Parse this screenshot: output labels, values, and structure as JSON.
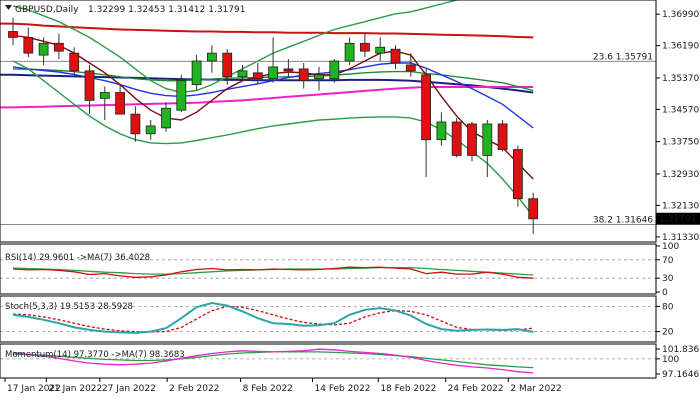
{
  "chart_data": {
    "type": "candlestick",
    "header": {
      "symbol": "GBPUSD,Daily",
      "ohlc": "1.32299 1.32453 1.31412 1.31791"
    },
    "y_axis": {
      "ticks": [
        "1.36990",
        "1.36190",
        "1.35370",
        "1.34570",
        "1.33750",
        "1.32930",
        "1.32130",
        "1.31330"
      ],
      "ylim": [
        1.312,
        1.373
      ],
      "current_price": "1.31791"
    },
    "x_axis": {
      "labels": [
        "17 Jan 2022",
        "21 Jan 2022",
        "27 Jan 2022",
        "2 Feb 2022",
        "8 Feb 2022",
        "14 Feb 2022",
        "18 Feb 2022",
        "24 Feb 2022",
        "2 Mar 2022"
      ]
    },
    "fib_levels": [
      {
        "label": "23.6 1.35791",
        "price": 1.35791
      },
      {
        "label": "38.2 1.31646",
        "price": 1.31646
      }
    ],
    "candles": [
      {
        "o": 1.3655,
        "h": 1.369,
        "l": 1.362,
        "c": 1.364
      },
      {
        "o": 1.364,
        "h": 1.3665,
        "l": 1.359,
        "c": 1.36
      },
      {
        "o": 1.3595,
        "h": 1.364,
        "l": 1.357,
        "c": 1.3625
      },
      {
        "o": 1.3625,
        "h": 1.365,
        "l": 1.3585,
        "c": 1.3605
      },
      {
        "o": 1.36,
        "h": 1.3615,
        "l": 1.354,
        "c": 1.3555
      },
      {
        "o": 1.3555,
        "h": 1.357,
        "l": 1.3445,
        "c": 1.348
      },
      {
        "o": 1.3485,
        "h": 1.3515,
        "l": 1.343,
        "c": 1.35
      },
      {
        "o": 1.35,
        "h": 1.352,
        "l": 1.3445,
        "c": 1.3445
      },
      {
        "o": 1.3445,
        "h": 1.3465,
        "l": 1.3375,
        "c": 1.3395
      },
      {
        "o": 1.3395,
        "h": 1.343,
        "l": 1.338,
        "c": 1.3415
      },
      {
        "o": 1.341,
        "h": 1.3475,
        "l": 1.34,
        "c": 1.346
      },
      {
        "o": 1.3455,
        "h": 1.3545,
        "l": 1.345,
        "c": 1.353
      },
      {
        "o": 1.352,
        "h": 1.3595,
        "l": 1.3505,
        "c": 1.358
      },
      {
        "o": 1.358,
        "h": 1.362,
        "l": 1.355,
        "c": 1.36
      },
      {
        "o": 1.36,
        "h": 1.361,
        "l": 1.352,
        "c": 1.354
      },
      {
        "o": 1.354,
        "h": 1.357,
        "l": 1.353,
        "c": 1.3555
      },
      {
        "o": 1.355,
        "h": 1.3575,
        "l": 1.352,
        "c": 1.3535
      },
      {
        "o": 1.3535,
        "h": 1.364,
        "l": 1.3525,
        "c": 1.3565
      },
      {
        "o": 1.356,
        "h": 1.3585,
        "l": 1.354,
        "c": 1.3555
      },
      {
        "o": 1.356,
        "h": 1.3575,
        "l": 1.351,
        "c": 1.353
      },
      {
        "o": 1.3535,
        "h": 1.3565,
        "l": 1.3505,
        "c": 1.3545
      },
      {
        "o": 1.3535,
        "h": 1.3585,
        "l": 1.3525,
        "c": 1.358
      },
      {
        "o": 1.358,
        "h": 1.364,
        "l": 1.357,
        "c": 1.3625
      },
      {
        "o": 1.3625,
        "h": 1.365,
        "l": 1.359,
        "c": 1.3605
      },
      {
        "o": 1.36,
        "h": 1.364,
        "l": 1.358,
        "c": 1.3615
      },
      {
        "o": 1.361,
        "h": 1.362,
        "l": 1.356,
        "c": 1.3575
      },
      {
        "o": 1.357,
        "h": 1.36,
        "l": 1.354,
        "c": 1.3555
      },
      {
        "o": 1.3545,
        "h": 1.356,
        "l": 1.3285,
        "c": 1.338
      },
      {
        "o": 1.338,
        "h": 1.345,
        "l": 1.3365,
        "c": 1.3425
      },
      {
        "o": 1.3425,
        "h": 1.3435,
        "l": 1.3335,
        "c": 1.334
      },
      {
        "o": 1.342,
        "h": 1.3425,
        "l": 1.3325,
        "c": 1.334
      },
      {
        "o": 1.334,
        "h": 1.343,
        "l": 1.3285,
        "c": 1.342
      },
      {
        "o": 1.342,
        "h": 1.343,
        "l": 1.335,
        "c": 1.3355
      },
      {
        "o": 1.3355,
        "h": 1.3365,
        "l": 1.321,
        "c": 1.323
      },
      {
        "o": 1.323,
        "h": 1.3245,
        "l": 1.3141,
        "c": 1.3179
      }
    ],
    "ma_blue_label": "",
    "overlays": [
      {
        "color": "#cc1111",
        "values": [
          1.3675,
          1.3673,
          1.367,
          1.3668,
          1.3666,
          1.3664,
          1.3662,
          1.366,
          1.3659,
          1.3658,
          1.3657,
          1.3656,
          1.3655,
          1.3655,
          1.3654,
          1.3654,
          1.3653,
          1.3653,
          1.3652,
          1.3652,
          1.3652,
          1.3651,
          1.3651,
          1.3651,
          1.365,
          1.365,
          1.3649,
          1.3648,
          1.3647,
          1.3646,
          1.3645,
          1.3644,
          1.3643,
          1.3641,
          1.364
        ]
      },
      {
        "color": "#1a237e",
        "values": [
          1.3545,
          1.3544,
          1.3543,
          1.3542,
          1.3541,
          1.354,
          1.3539,
          1.3538,
          1.3537,
          1.3536,
          1.3535,
          1.3534,
          1.3533,
          1.3533,
          1.3532,
          1.3532,
          1.3531,
          1.3531,
          1.3531,
          1.3531,
          1.3531,
          1.3531,
          1.3532,
          1.3532,
          1.3532,
          1.3531,
          1.353,
          1.3527,
          1.3524,
          1.3521,
          1.3518,
          1.3514,
          1.351,
          1.3505,
          1.35
        ]
      },
      {
        "color": "#ee22cc",
        "values": [
          1.3462,
          1.3463,
          1.3464,
          1.3465,
          1.3466,
          1.3467,
          1.3468,
          1.3469,
          1.347,
          1.3471,
          1.3472,
          1.3473,
          1.3474,
          1.3476,
          1.3478,
          1.348,
          1.3483,
          1.3486,
          1.3489,
          1.3492,
          1.3495,
          1.3498,
          1.3501,
          1.3504,
          1.3507,
          1.351,
          1.3512,
          1.3514,
          1.3514,
          1.3514,
          1.3514,
          1.3514,
          1.3514,
          1.3514,
          1.3514
        ]
      },
      {
        "color": "#1f8b3a",
        "values": [
          1.356,
          1.3559,
          1.3558,
          1.3556,
          1.3553,
          1.3549,
          1.3545,
          1.354,
          1.3535,
          1.3532,
          1.353,
          1.353,
          1.3532,
          1.3534,
          1.3536,
          1.3537,
          1.3538,
          1.3539,
          1.354,
          1.3541,
          1.3542,
          1.3544,
          1.3547,
          1.355,
          1.3552,
          1.3553,
          1.3553,
          1.3548,
          1.3545,
          1.354,
          1.3535,
          1.353,
          1.3525,
          1.3515,
          1.3505
        ]
      },
      {
        "color": "#2233ee",
        "values": [
          1.3565,
          1.356,
          1.3556,
          1.3552,
          1.3546,
          1.3538,
          1.353,
          1.352,
          1.3508,
          1.3498,
          1.3492,
          1.349,
          1.3494,
          1.35,
          1.3508,
          1.3515,
          1.3522,
          1.353,
          1.3538,
          1.3544,
          1.3548,
          1.3552,
          1.3558,
          1.3565,
          1.3572,
          1.3575,
          1.3575,
          1.3562,
          1.3545,
          1.3528,
          1.351,
          1.349,
          1.347,
          1.344,
          1.341
        ]
      },
      {
        "color": "#7a0f0f",
        "values": [
          1.3645,
          1.364,
          1.363,
          1.362,
          1.36,
          1.3575,
          1.355,
          1.352,
          1.3485,
          1.3455,
          1.3435,
          1.343,
          1.345,
          1.348,
          1.351,
          1.353,
          1.354,
          1.3548,
          1.3552,
          1.355,
          1.3545,
          1.3545,
          1.356,
          1.358,
          1.36,
          1.3605,
          1.3595,
          1.3545,
          1.349,
          1.344,
          1.34,
          1.338,
          1.336,
          1.332,
          1.328
        ]
      },
      {
        "color": "#2e9b4a",
        "values": [
          1.372,
          1.371,
          1.3695,
          1.368,
          1.366,
          1.364,
          1.3615,
          1.359,
          1.356,
          1.353,
          1.351,
          1.35,
          1.3505,
          1.352,
          1.354,
          1.356,
          1.358,
          1.36,
          1.3615,
          1.363,
          1.3645,
          1.366,
          1.367,
          1.368,
          1.369,
          1.37,
          1.3705,
          1.3715,
          1.3725,
          1.3735,
          1.374,
          1.3745,
          1.375,
          1.376,
          1.378
        ]
      },
      {
        "color": "#2e9b4a",
        "values": [
          1.358,
          1.356,
          1.353,
          1.35,
          1.347,
          1.344,
          1.3415,
          1.3395,
          1.338,
          1.3372,
          1.337,
          1.3372,
          1.3378,
          1.3385,
          1.3392,
          1.34,
          1.3408,
          1.3415,
          1.342,
          1.3425,
          1.343,
          1.3432,
          1.3435,
          1.3437,
          1.3438,
          1.3438,
          1.3435,
          1.3425,
          1.3405,
          1.338,
          1.335,
          1.332,
          1.328,
          1.3235,
          1.3185
        ]
      }
    ],
    "panels": [
      {
        "title": "RSI(14) 29.9601 ->MA(7) 36.4028",
        "ylim": [
          0,
          100
        ],
        "ticks": [
          "100",
          "70",
          "30",
          "0"
        ],
        "tick_values": [
          100,
          70,
          30,
          0
        ],
        "dashed_levels": [
          70,
          30
        ],
        "lines": [
          {
            "color": "#2e9b4a",
            "values": [
              52,
              51,
              50,
              49,
              47,
              45,
              43,
              42,
              40,
              39,
              39,
              40,
              42,
              44,
              46,
              47,
              48,
              49,
              50,
              50,
              50,
              50,
              51,
              52,
              53,
              53,
              53,
              51,
              49,
              47,
              45,
              43,
              41,
              39,
              37
            ]
          },
          {
            "color": "#cc1111",
            "values": [
              50,
              48,
              49,
              47,
              44,
              38,
              40,
              35,
              32,
              33,
              37,
              44,
              49,
              51,
              48,
              49,
              48,
              50,
              49,
              48,
              49,
              51,
              54,
              53,
              54,
              52,
              50,
              40,
              43,
              39,
              39,
              43,
              39,
              32,
              30
            ]
          }
        ]
      },
      {
        "title": "Stoch(5,3,3) 19.5153 28.5928",
        "ylim": [
          0,
          100
        ],
        "ticks": [
          "80",
          "20"
        ],
        "tick_values": [
          80,
          20
        ],
        "dashed_levels": [
          80,
          20
        ],
        "lines": [
          {
            "color": "#cc1111",
            "dashed": true,
            "values": [
              62,
              60,
              55,
              48,
              40,
              32,
              26,
              22,
              20,
              19,
              20,
              30,
              50,
              70,
              80,
              78,
              70,
              60,
              50,
              42,
              38,
              36,
              40,
              55,
              65,
              70,
              68,
              60,
              45,
              30,
              25,
              24,
              23,
              24,
              28
            ]
          },
          {
            "color": "#2aa6a6",
            "values": [
              60,
              55,
              48,
              40,
              30,
              24,
              20,
              18,
              17,
              20,
              28,
              52,
              78,
              88,
              82,
              68,
              52,
              40,
              38,
              34,
              35,
              40,
              60,
              72,
              76,
              70,
              58,
              38,
              26,
              22,
              24,
              25,
              24,
              26,
              19
            ]
          }
        ]
      },
      {
        "title": "Momentum(14) 97.3770 ->MA(7) 98.3683",
        "ylim": [
          96.8,
          102.4
        ],
        "ticks": [
          "101.8365",
          "100",
          "97.1646"
        ],
        "tick_values": [
          101.8365,
          100,
          97.1646
        ],
        "dashed_levels": [
          100
        ],
        "lines": [
          {
            "color": "#2e9b4a",
            "values": [
              100.9,
              100.8,
              100.7,
              100.5,
              100.3,
              100.1,
              99.9,
              99.8,
              99.7,
              99.7,
              99.8,
              100.0,
              100.3,
              100.6,
              100.9,
              101.1,
              101.2,
              101.3,
              101.3,
              101.3,
              101.3,
              101.2,
              101.1,
              101.0,
              100.8,
              100.6,
              100.4,
              100.1,
              99.8,
              99.5,
              99.2,
              98.9,
              98.7,
              98.5,
              98.37
            ]
          },
          {
            "color": "#ee22cc",
            "values": [
              101.2,
              100.8,
              100.5,
              100.1,
              99.6,
              99.2,
              99.0,
              98.9,
              99.0,
              99.2,
              99.6,
              100.1,
              100.6,
              101.0,
              101.3,
              101.5,
              101.4,
              101.3,
              101.4,
              101.5,
              101.8,
              101.7,
              101.4,
              101.2,
              101.0,
              100.7,
              100.3,
              99.7,
              99.2,
              98.8,
              98.5,
              98.3,
              98.0,
              97.6,
              97.38
            ]
          }
        ]
      }
    ]
  }
}
